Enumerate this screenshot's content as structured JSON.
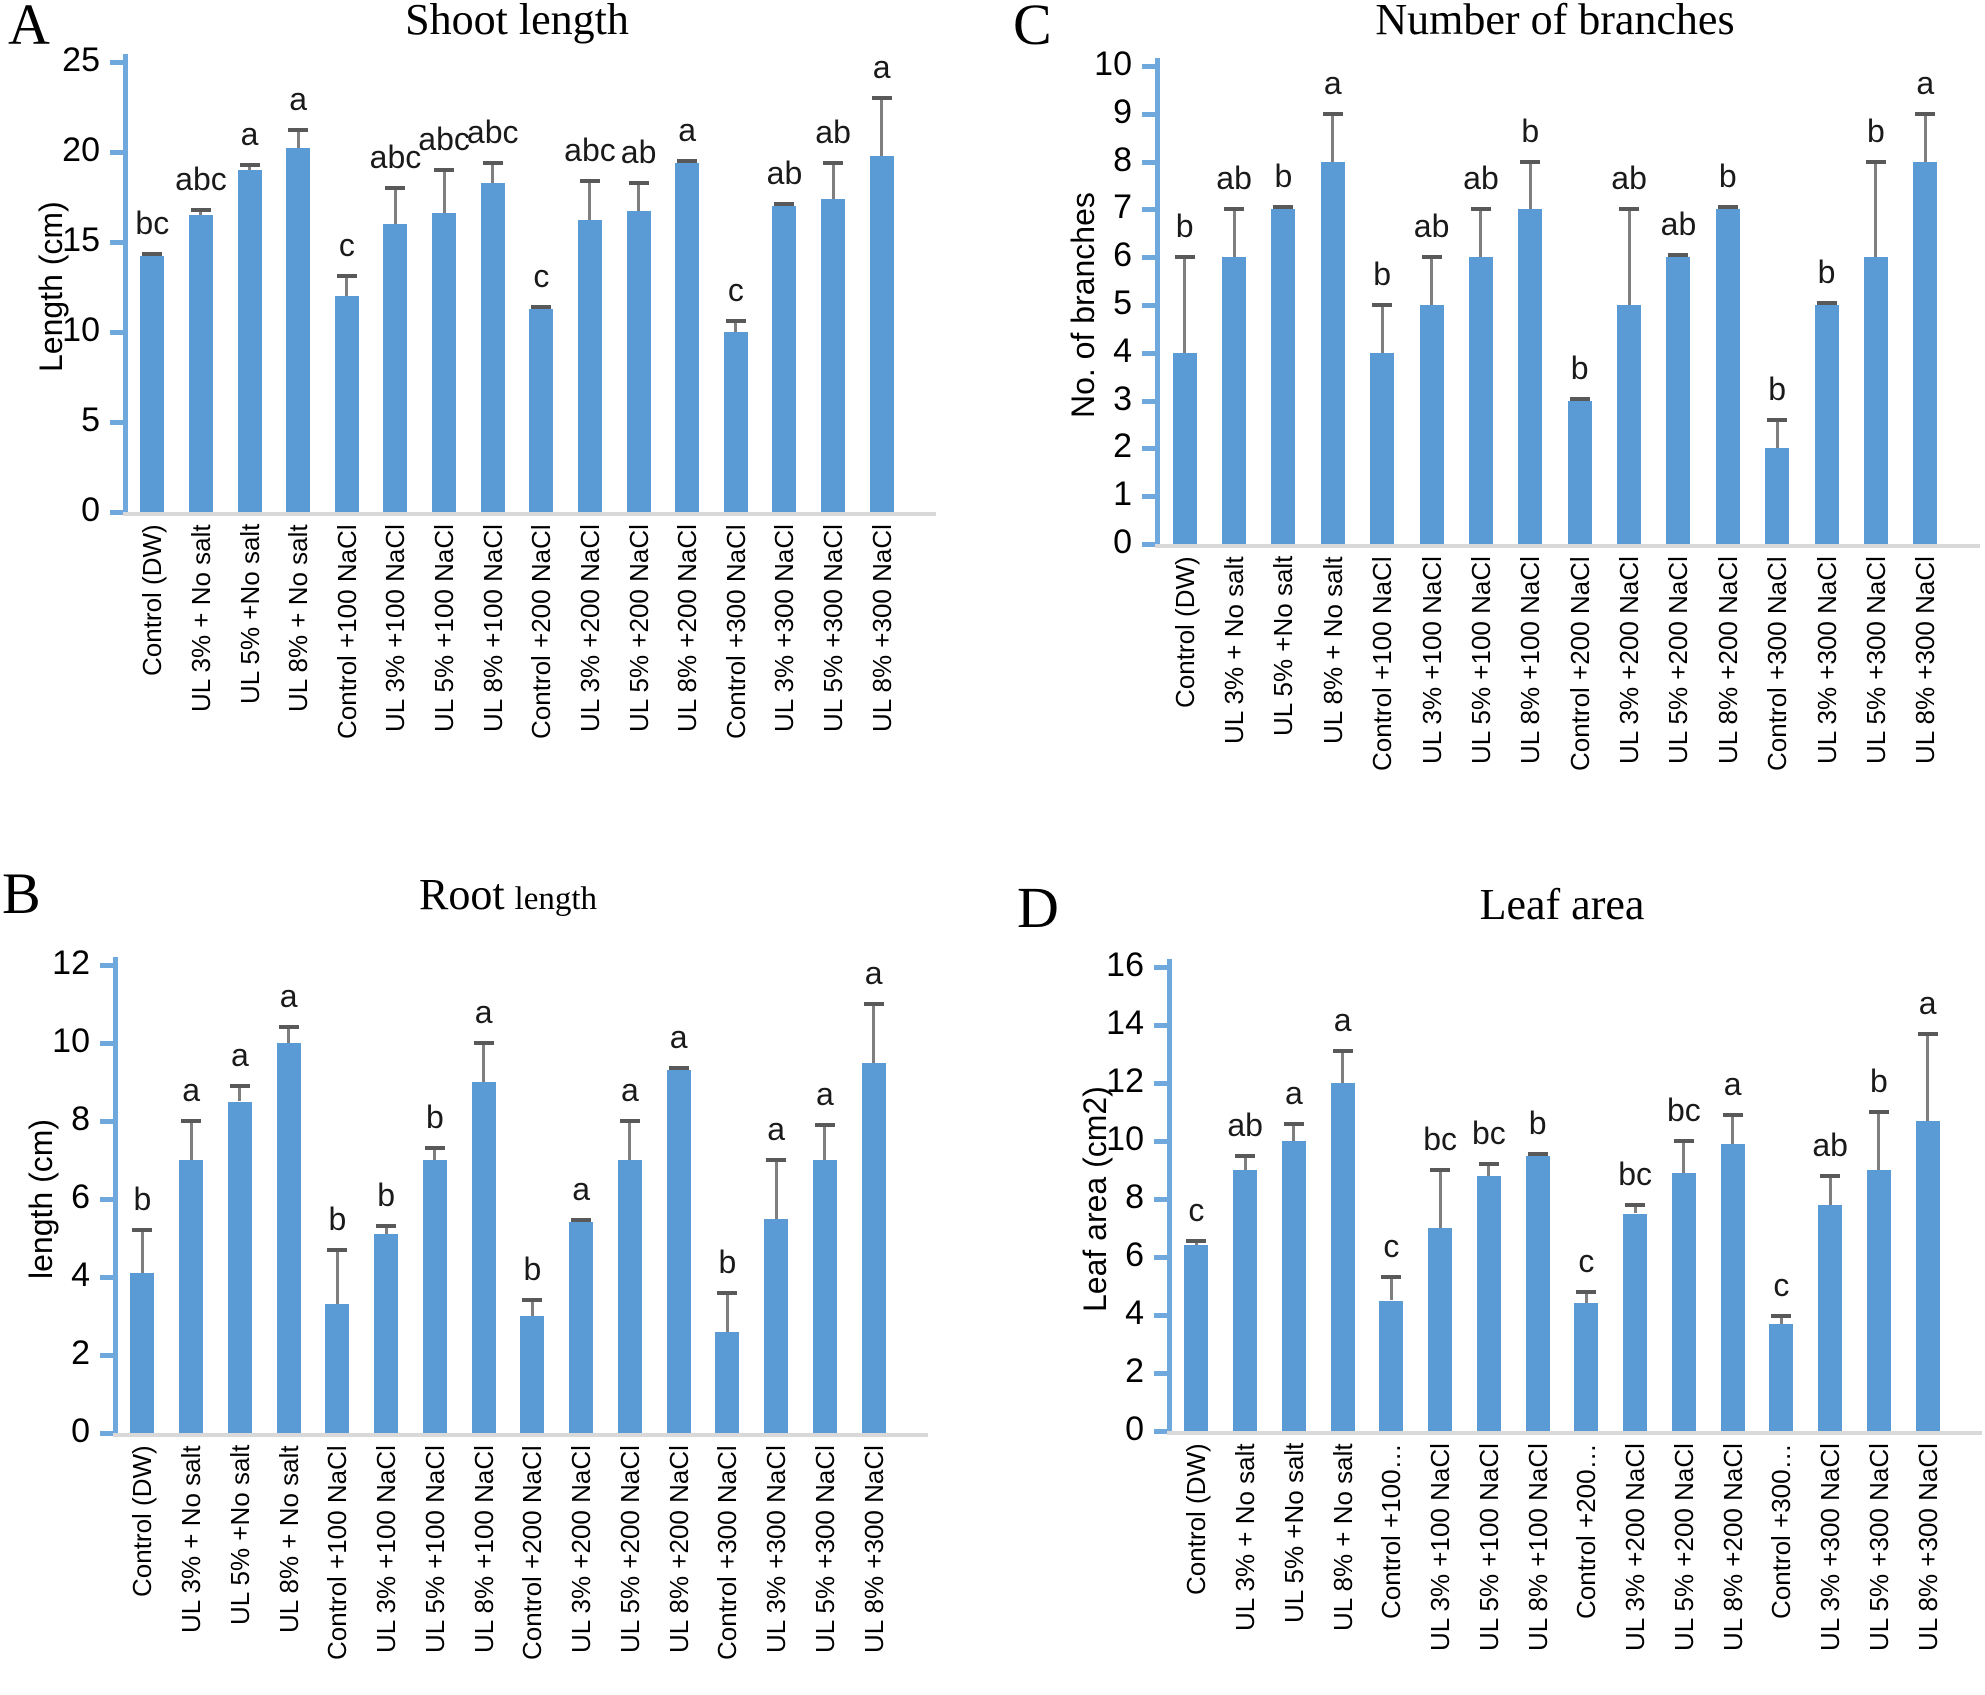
{
  "colors": {
    "bar": "#5b9bd5",
    "axis": "#6fa8dc",
    "error_line": "#7f7f7f",
    "error_cap": "#595959",
    "baseline": "#d9d9d9"
  },
  "chart_data": [
    {
      "type": "bar",
      "panel_letter": "A",
      "title": "Shoot length",
      "title_small": "",
      "ylabel": "Length (cm)",
      "xlabel": "",
      "ylim": [
        0,
        25
      ],
      "yticks": [
        0,
        5,
        10,
        15,
        20,
        25
      ],
      "grid": false,
      "legend": false,
      "categories": [
        "Control (DW)",
        "UL 3% + No salt",
        "UL 5% +No salt",
        "UL 8% + No salt",
        "Control +100 NaCl",
        "UL 3% +100 NaCl",
        "UL 5% +100 NaCl",
        "UL 8% +100 NaCl",
        "Control +200 NaCl",
        "UL 3% +200 NaCl",
        "UL 5% +200 NaCl",
        "UL 8% +200 NaCl",
        "Control +300 NaCl",
        "UL 3% +300 NaCl",
        "UL 5% +300 NaCl",
        "UL 8% +300 NaCl"
      ],
      "values": [
        14.2,
        16.5,
        19.0,
        20.2,
        12.0,
        16.0,
        16.6,
        18.3,
        11.3,
        16.2,
        16.7,
        19.4,
        10.0,
        17.0,
        17.4,
        19.8
      ],
      "errors": [
        0.2,
        0.3,
        0.3,
        1.0,
        1.1,
        2.0,
        2.4,
        1.1,
        0.2,
        2.2,
        1.6,
        0.1,
        0.6,
        0.1,
        2.0,
        3.2
      ],
      "sig_letters": [
        "bc",
        "abc",
        "a",
        "a",
        "c",
        "abc",
        "abc",
        "abc",
        "c",
        "abc",
        "ab",
        "a",
        "c",
        "ab",
        "ab",
        "a"
      ]
    },
    {
      "type": "bar",
      "panel_letter": "C",
      "title": "Number of branches",
      "title_small": "",
      "ylabel": "No. of branches",
      "xlabel": "",
      "ylim": [
        0,
        10
      ],
      "yticks": [
        0,
        1,
        2,
        3,
        4,
        5,
        6,
        7,
        8,
        9,
        10
      ],
      "grid": false,
      "legend": false,
      "categories": [
        "Control (DW)",
        "UL 3% + No salt",
        "UL 5% +No salt",
        "UL 8% + No salt",
        "Control +100 NaCl",
        "UL 3% +100 NaCl",
        "UL 5% +100 NaCl",
        "UL 8% +100 NaCl",
        "Control +200 NaCl",
        "UL 3% +200 NaCl",
        "UL 5% +200 NaCl",
        "UL 8% +200 NaCl",
        "Control +300 NaCl",
        "UL 3% +300 NaCl",
        "UL 5% +300 NaCl",
        "UL 8% +300 NaCl"
      ],
      "values": [
        4,
        6,
        7,
        8,
        4,
        5,
        6,
        7,
        3,
        5,
        6,
        7,
        2,
        5,
        6,
        8
      ],
      "errors": [
        2,
        1,
        0.05,
        1,
        1,
        1,
        1,
        1,
        0.05,
        2,
        0.05,
        0.05,
        0.6,
        0.05,
        2,
        1
      ],
      "sig_letters": [
        "b",
        "ab",
        "b",
        "a",
        "b",
        "ab",
        "ab",
        "b",
        "b",
        "ab",
        "ab",
        "b",
        "b",
        "b",
        "b",
        "a"
      ]
    },
    {
      "type": "bar",
      "panel_letter": "B",
      "title": "Root",
      "title_small": "length",
      "ylabel": "length (cm)",
      "xlabel": "",
      "ylim": [
        0,
        12
      ],
      "yticks": [
        0,
        2,
        4,
        6,
        8,
        10,
        12
      ],
      "grid": false,
      "legend": false,
      "categories": [
        "Control (DW)",
        "UL 3% + No salt",
        "UL 5% +No salt",
        "UL 8% + No salt",
        "Control +100 NaCl",
        "UL 3% +100 NaCl",
        "UL 5% +100 NaCl",
        "UL 8% +100 NaCl",
        "Control +200 NaCl",
        "UL 3% +200 NaCl",
        "UL 5% +200 NaCl",
        "UL 8% +200 NaCl",
        "Control +300 NaCl",
        "UL 3% +300 NaCl",
        "UL 5% +300 NaCl",
        "UL 8% +300 NaCl"
      ],
      "values": [
        4.1,
        7.0,
        8.5,
        10.0,
        3.3,
        5.1,
        7.0,
        9.0,
        3.0,
        5.4,
        7.0,
        9.3,
        2.6,
        5.5,
        7.0,
        9.5
      ],
      "errors": [
        1.1,
        1.0,
        0.4,
        0.4,
        1.4,
        0.2,
        0.3,
        1.0,
        0.4,
        0.1,
        1.0,
        0.1,
        1.0,
        1.5,
        0.9,
        1.5
      ],
      "sig_letters": [
        "b",
        "a",
        "a",
        "a",
        "b",
        "b",
        "b",
        "a",
        "b",
        "a",
        "a",
        "a",
        "b",
        "a",
        "a",
        "a"
      ]
    },
    {
      "type": "bar",
      "panel_letter": "D",
      "title": "Leaf area",
      "title_small": "",
      "ylabel": "Leaf area (cm2)",
      "xlabel": "",
      "ylim": [
        0,
        16
      ],
      "yticks": [
        0,
        2,
        4,
        6,
        8,
        10,
        12,
        14,
        16
      ],
      "grid": false,
      "legend": false,
      "categories": [
        "Control (DW)",
        "UL 3% + No salt",
        "UL 5% +No salt",
        "UL 8% + No salt",
        "Control +100…",
        "UL 3% +100 NaCl",
        "UL 5% +100 NaCl",
        "UL 8% +100 NaCl",
        "Control +200…",
        "UL 3% +200 NaCl",
        "UL 5% +200 NaCl",
        "UL 8% +200 NaCl",
        "Control +300…",
        "UL 3% +300 NaCl",
        "UL 5% +300 NaCl",
        "UL 8% +300 NaCl"
      ],
      "values": [
        6.4,
        9.0,
        10.0,
        12.0,
        4.5,
        7.0,
        8.8,
        9.5,
        4.4,
        7.5,
        8.9,
        9.9,
        3.7,
        7.8,
        9.0,
        10.7
      ],
      "errors": [
        0.15,
        0.5,
        0.6,
        1.1,
        0.8,
        2.0,
        0.4,
        0.1,
        0.4,
        0.3,
        1.1,
        1.0,
        0.25,
        1.0,
        2.0,
        3.0
      ],
      "sig_letters": [
        "c",
        "ab",
        "a",
        "a",
        "c",
        "bc",
        "bc",
        "b",
        "c",
        "bc",
        "bc",
        "a",
        "c",
        "ab",
        "b",
        "a"
      ]
    }
  ]
}
